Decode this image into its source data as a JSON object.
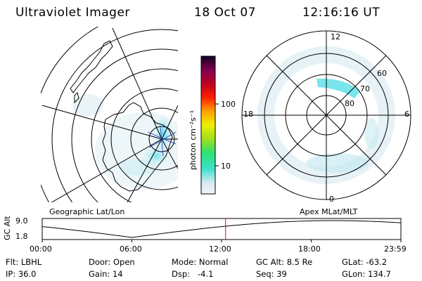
{
  "header": {
    "instrument": "Ultraviolet Imager",
    "date": "18 Oct 07",
    "time": "12:16:16 UT"
  },
  "left_panel": {
    "label": "Geographic Lat/Lon"
  },
  "right_panel": {
    "label": "Apex MLat/MLT",
    "mlt_labels": [
      "12",
      "18",
      "6",
      "0"
    ],
    "lat_labels": [
      "60",
      "70",
      "80"
    ]
  },
  "colorbar": {
    "unit_label": "photon cm⁻²s⁻¹",
    "ticks": [
      "100",
      "10"
    ]
  },
  "timeline": {
    "axis_label": "GC Alt",
    "y_ticks": [
      "9.0",
      "1.8"
    ],
    "x_ticks": [
      "00:00",
      "06:00",
      "12:00",
      "18:00",
      "23:59"
    ],
    "marker_time_hours": 12.27
  },
  "info": [
    [
      "Flt: LBHL",
      "Door: Open",
      "Mode: Normal",
      "GC Alt: 8.5 Re",
      "GLat: -63.2"
    ],
    [
      "IP: 36.0",
      "Gain: 14",
      "Dsp:   -4.1",
      "Seq: 39",
      "GLon: 134.7"
    ]
  ],
  "colors": {
    "aurora": "#5fe0e8",
    "marker": "#e00000"
  }
}
